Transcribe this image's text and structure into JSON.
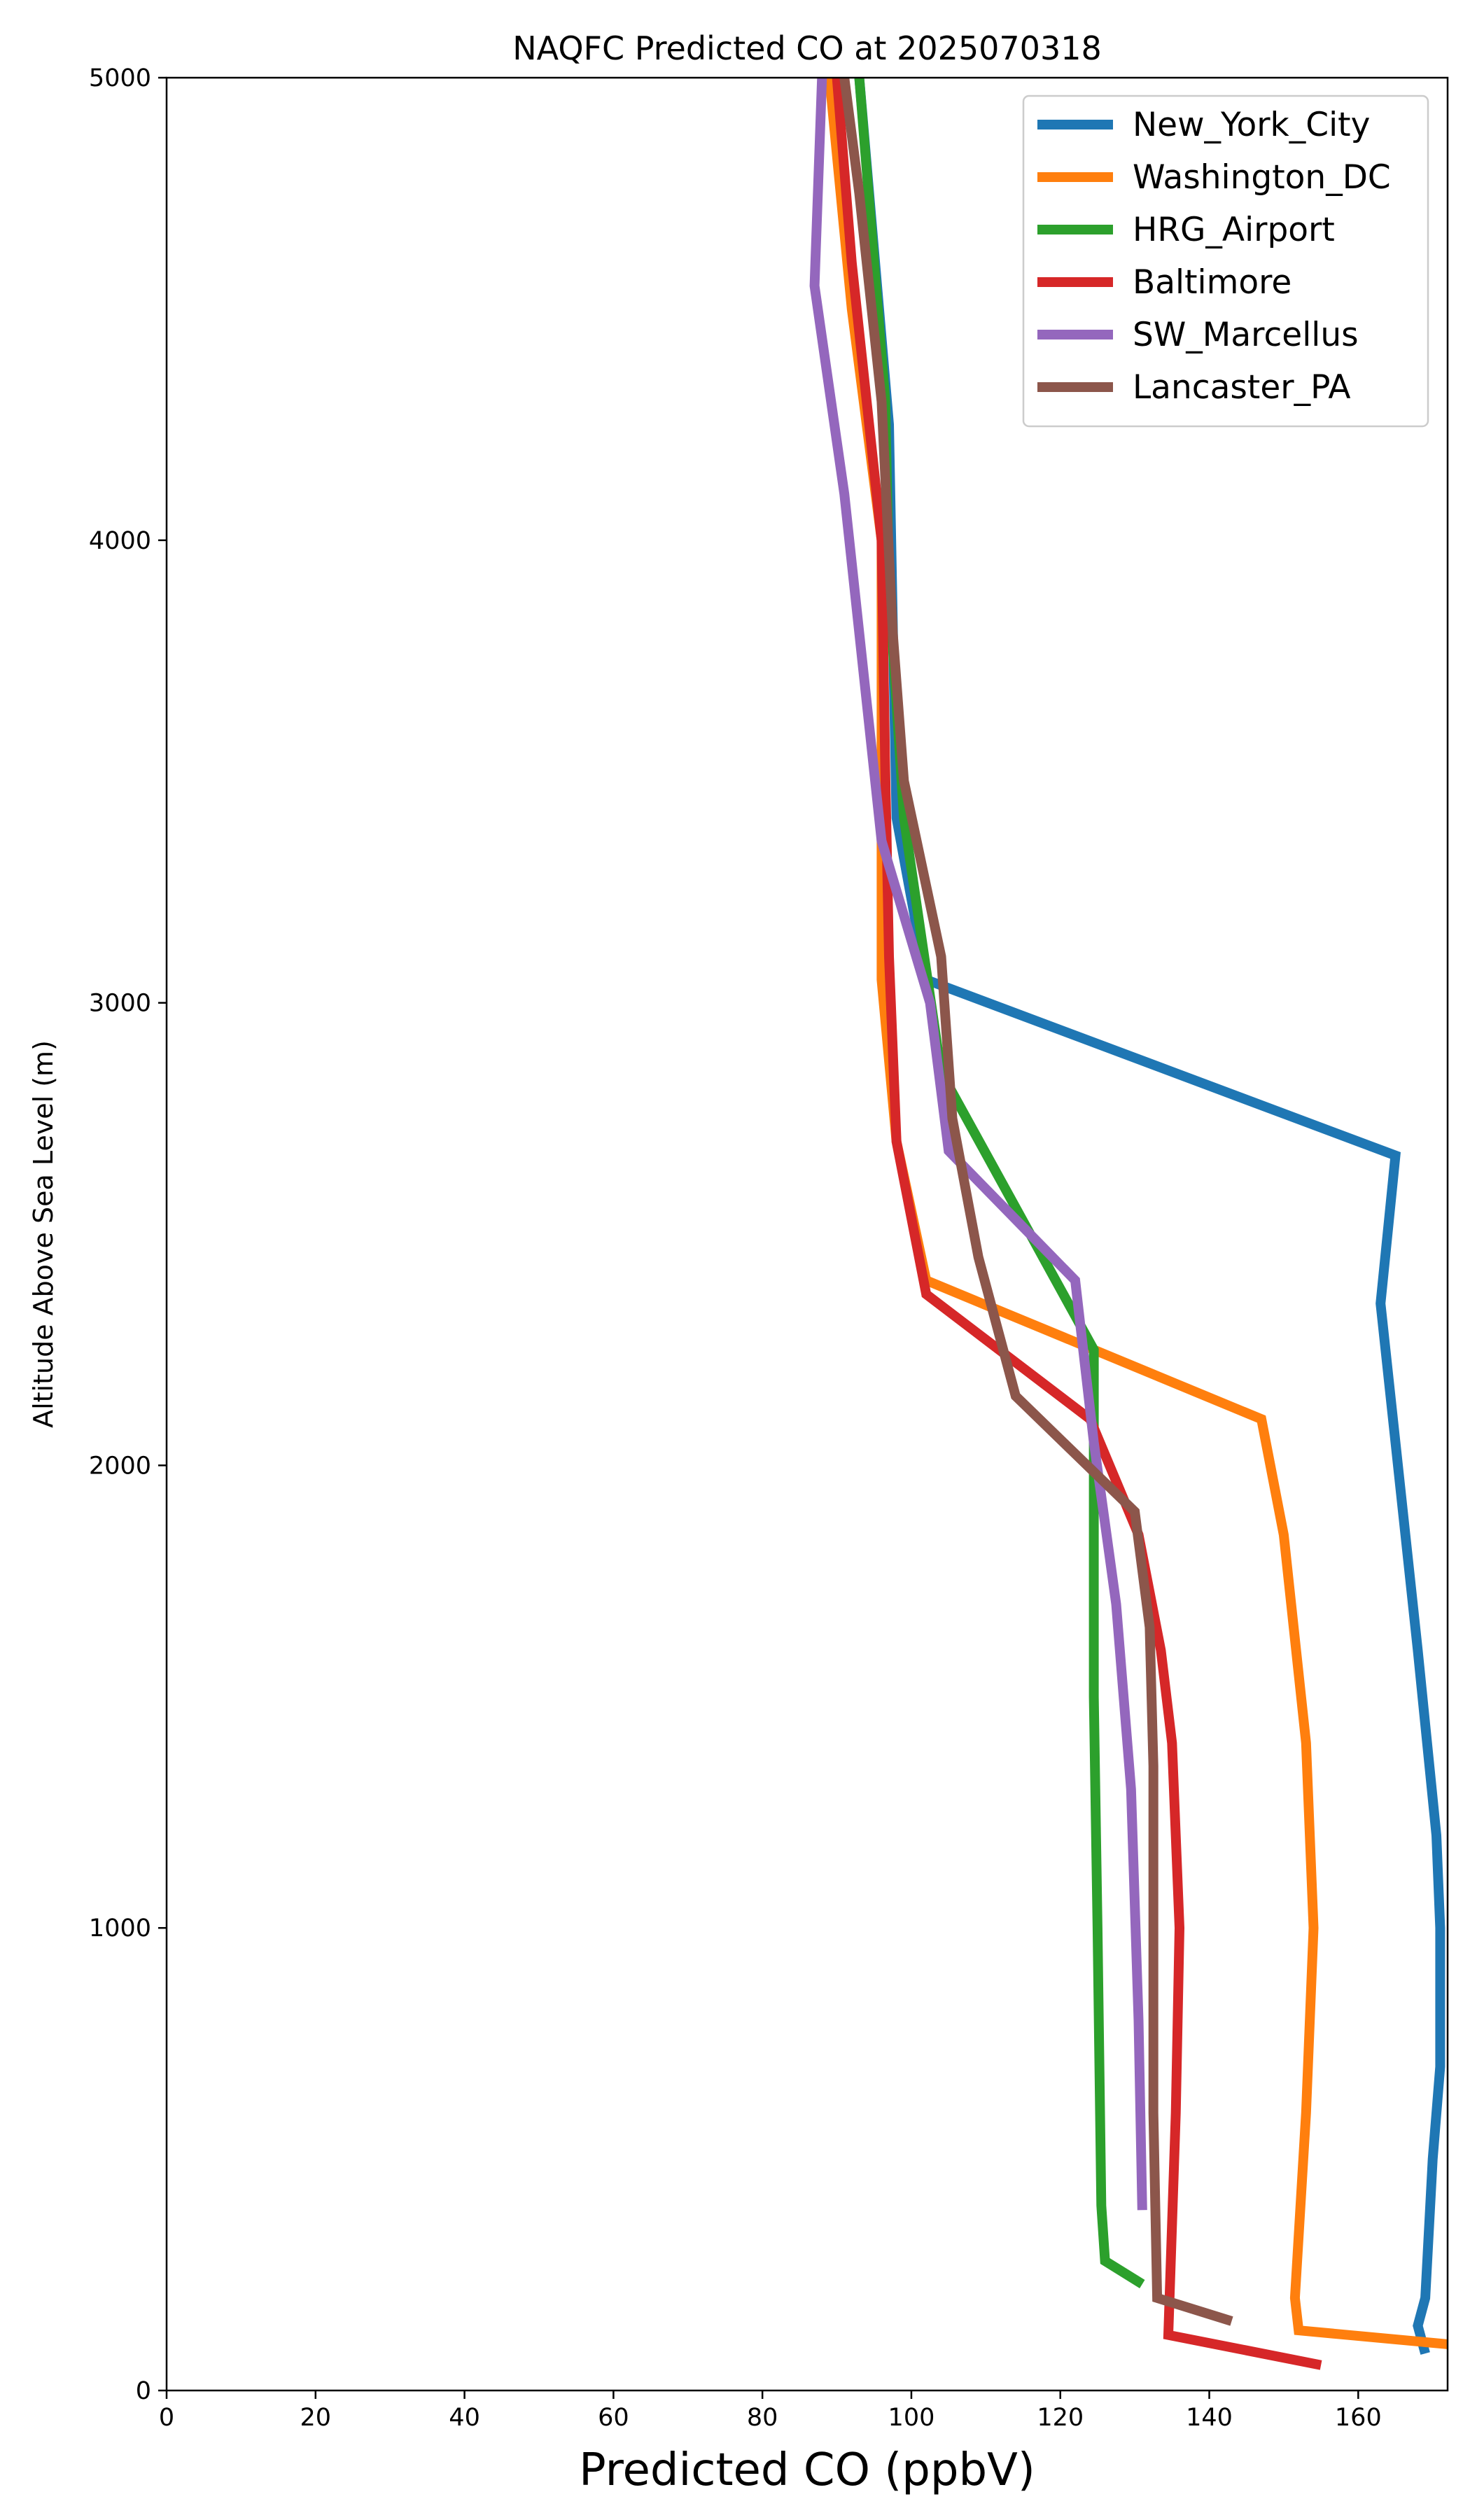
{
  "chart_data": {
    "type": "line",
    "title": "NAQFC Predicted CO at 2025070318",
    "xlabel": "Predicted CO (ppbV)",
    "ylabel": "Altitude Above Sea Level (m)",
    "xlim": [
      0,
      172
    ],
    "ylim": [
      0,
      5000
    ],
    "x_ticks": [
      0,
      20,
      40,
      60,
      80,
      100,
      120,
      140,
      160
    ],
    "y_ticks": [
      0,
      1000,
      2000,
      3000,
      4000,
      5000
    ],
    "grid": false,
    "legend_position": "top-right",
    "series": [
      {
        "name": "New_York_City",
        "color": "#1f77b4",
        "points": [
          [
            169,
            80
          ],
          [
            168,
            140
          ],
          [
            169,
            200
          ],
          [
            170,
            500
          ],
          [
            171,
            700
          ],
          [
            171,
            1000
          ],
          [
            170.5,
            1200
          ],
          [
            168,
            1600
          ],
          [
            165,
            2050
          ],
          [
            163,
            2350
          ],
          [
            165,
            2670
          ],
          [
            102,
            3050
          ],
          [
            98,
            3400
          ],
          [
            97,
            4250
          ],
          [
            93,
            5000
          ]
        ]
      },
      {
        "name": "Washington_DC",
        "color": "#ff7f0e",
        "points": [
          [
            172,
            100
          ],
          [
            152,
            130
          ],
          [
            151.5,
            200
          ],
          [
            153,
            600
          ],
          [
            154,
            1000
          ],
          [
            153,
            1400
          ],
          [
            150,
            1850
          ],
          [
            147,
            2100
          ],
          [
            102,
            2400
          ],
          [
            98,
            2700
          ],
          [
            96,
            3050
          ],
          [
            96,
            3500
          ],
          [
            96,
            4000
          ],
          [
            92,
            4500
          ],
          [
            89,
            5000
          ]
        ]
      },
      {
        "name": "HRG_Airport",
        "color": "#2ca02c",
        "points": [
          [
            131,
            230
          ],
          [
            126,
            280
          ],
          [
            125.5,
            400
          ],
          [
            125,
            1000
          ],
          [
            124.5,
            1500
          ],
          [
            124.5,
            2000
          ],
          [
            124.5,
            2250
          ],
          [
            104,
            2850
          ],
          [
            99,
            3400
          ],
          [
            97,
            3900
          ],
          [
            96.5,
            4300
          ],
          [
            93,
            5000
          ]
        ]
      },
      {
        "name": "Baltimore",
        "color": "#d62728",
        "points": [
          [
            155,
            55
          ],
          [
            134.5,
            120
          ],
          [
            135.5,
            600
          ],
          [
            136,
            1000
          ],
          [
            135,
            1400
          ],
          [
            133.5,
            1600
          ],
          [
            130.5,
            1850
          ],
          [
            124,
            2100
          ],
          [
            102,
            2370
          ],
          [
            98,
            2700
          ],
          [
            97,
            3100
          ],
          [
            96.5,
            3500
          ],
          [
            96,
            4000
          ],
          [
            92,
            4600
          ],
          [
            90,
            5000
          ]
        ]
      },
      {
        "name": "SW_Marcellus",
        "color": "#9467bd",
        "points": [
          [
            131,
            390
          ],
          [
            130.5,
            800
          ],
          [
            129.5,
            1300
          ],
          [
            127.5,
            1700
          ],
          [
            124.5,
            2050
          ],
          [
            122,
            2400
          ],
          [
            105,
            2680
          ],
          [
            102.5,
            3000
          ],
          [
            96,
            3350
          ],
          [
            91,
            4100
          ],
          [
            87,
            4550
          ],
          [
            88,
            5000
          ]
        ]
      },
      {
        "name": "Lancaster_PA",
        "color": "#8c564b",
        "points": [
          [
            143,
            150
          ],
          [
            133,
            200
          ],
          [
            132.5,
            600
          ],
          [
            132.5,
            1000
          ],
          [
            132.5,
            1350
          ],
          [
            132,
            1650
          ],
          [
            130,
            1900
          ],
          [
            114,
            2150
          ],
          [
            109,
            2450
          ],
          [
            105.5,
            2750
          ],
          [
            104,
            3100
          ],
          [
            99,
            3480
          ],
          [
            97.5,
            3800
          ],
          [
            96,
            4300
          ],
          [
            93,
            4750
          ],
          [
            91,
            5000
          ]
        ]
      }
    ]
  }
}
